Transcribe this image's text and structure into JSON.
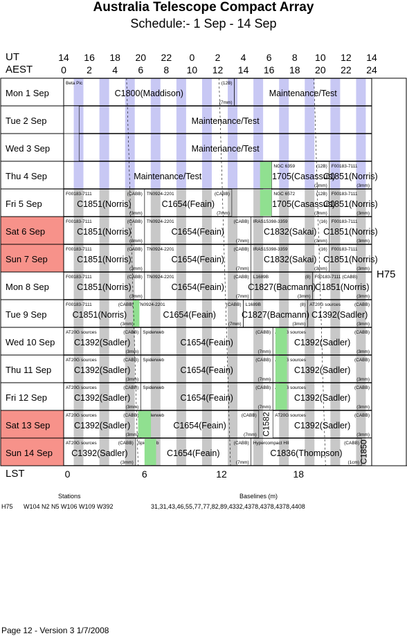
{
  "title": "Australia Telescope Compact Array",
  "subtitle": "Schedule:- 1  Sep - 14 Sep",
  "ut_label": "UT",
  "aest_label": "AEST",
  "lst_label": "LST",
  "ut_hours": [
    "14",
    "16",
    "18",
    "20",
    "22",
    "0",
    "2",
    "4",
    "6",
    "8",
    "10",
    "12",
    "14"
  ],
  "aest_hours": [
    "0",
    "2",
    "4",
    "6",
    "8",
    "10",
    "12",
    "14",
    "16",
    "18",
    "20",
    "22",
    "24"
  ],
  "lst_ticks": [
    "0",
    "6",
    "12",
    "18"
  ],
  "array_config": "H75",
  "days": [
    {
      "label": "Mon  1 Sep",
      "weekend": false
    },
    {
      "label": "Tue  2 Sep",
      "weekend": false
    },
    {
      "label": "Wed  3 Sep",
      "weekend": false
    },
    {
      "label": "Thu  4 Sep",
      "weekend": false
    },
    {
      "label": "Fri  5 Sep",
      "weekend": false
    },
    {
      "label": "Sat  6 Sep",
      "weekend": true
    },
    {
      "label": "Sun  7 Sep",
      "weekend": true
    },
    {
      "label": "Mon  8 Sep",
      "weekend": false
    },
    {
      "label": "Tue  9 Sep",
      "weekend": false
    },
    {
      "label": "Wed 10 Sep",
      "weekend": false
    },
    {
      "label": "Thu  11 Sep",
      "weekend": false
    },
    {
      "label": "Fri  12 Sep",
      "weekend": false
    },
    {
      "label": "Sat  13 Sep",
      "weekend": true
    },
    {
      "label": "Sun  14 Sep",
      "weekend": true
    }
  ],
  "blocks": [
    {
      "row": 0,
      "start": 0,
      "end": 13.3,
      "code": "C1800(Maddison)",
      "src": "Beta Pic",
      "rx": "(12B)",
      "band": "(7mm)"
    },
    {
      "row": 0,
      "start": 13.3,
      "end": 24,
      "code": "Maintenance/Test"
    },
    {
      "row": 1,
      "start": 1.2,
      "end": 24,
      "code": "Maintenance/Test",
      "full": true
    },
    {
      "row": 2,
      "start": 1.2,
      "end": 24,
      "code": "Maintenance/Test",
      "full": true
    },
    {
      "row": 3,
      "start": 0,
      "end": 16.2,
      "code": "Maintenance/Test"
    },
    {
      "row": 3,
      "start": 16.2,
      "end": 20.7,
      "code": "C1705(Casassus)",
      "src": "NGC 6359",
      "rx": "(12B)",
      "band": "(3mm)"
    },
    {
      "row": 3,
      "start": 20.7,
      "end": 24,
      "code": "C1851(Norris)",
      "src": "F00183-7111",
      "band": "(3mm)"
    },
    {
      "row": 4,
      "start": 0,
      "end": 6.3,
      "code": "C1851(Norris)",
      "src": "F00183-7111",
      "rx": "(CABB)",
      "band": "(3mm)"
    },
    {
      "row": 4,
      "start": 6.3,
      "end": 13.1,
      "code": "C1654(Feain)",
      "src": "TN0924-2201",
      "rx": "(CABB)",
      "band": "(7mm)"
    },
    {
      "row": 4,
      "start": 13.1,
      "end": 16.2,
      "code": "",
      "gap": true
    },
    {
      "row": 4,
      "start": 16.2,
      "end": 20.7,
      "code": "C1705(Casassus)",
      "src": "NGC 6572",
      "rx": "(12B)",
      "band": "(3mm)"
    },
    {
      "row": 4,
      "start": 20.7,
      "end": 24,
      "code": "C1851(Norris)",
      "src": "F00183-7111",
      "band": "(3mm)"
    },
    {
      "row": 5,
      "start": 0,
      "end": 6.3,
      "code": "C1851(Norris)",
      "src": "F00183-7111",
      "rx": "(CABB)",
      "band": "(3mm)"
    },
    {
      "row": 5,
      "start": 6.3,
      "end": 14.6,
      "code": "C1654(Feain)",
      "src": "TN0924-2201",
      "rx": "(CABB)",
      "band": "(7mm)"
    },
    {
      "row": 5,
      "start": 14.6,
      "end": 20.7,
      "code": "C1832(Sakai)",
      "src": "IRAS15398-3359",
      "rx": "(16)",
      "band": "(3mm)"
    },
    {
      "row": 5,
      "start": 20.7,
      "end": 24,
      "code": "C1851(Norris)",
      "src": "F00183-7111",
      "band": "(3mm)"
    },
    {
      "row": 6,
      "start": 0,
      "end": 6.3,
      "code": "C1851(Norris)",
      "src": "F00183-7111",
      "rx": "(CABB)",
      "band": "(3mm)"
    },
    {
      "row": 6,
      "start": 6.3,
      "end": 14.6,
      "code": "C1654(Feain)",
      "src": "TN0924-2201",
      "rx": "(CABB)",
      "band": "(7mm)"
    },
    {
      "row": 6,
      "start": 14.6,
      "end": 20.7,
      "code": "C1832(Sakai)",
      "src": "IRAS15398-3359",
      "rx": "(16)",
      "band": "(3mm)"
    },
    {
      "row": 6,
      "start": 20.7,
      "end": 24,
      "code": "C1851(Norris)",
      "src": "F00183-7111",
      "band": "(3mm)"
    },
    {
      "row": 7,
      "start": 0,
      "end": 6.3,
      "code": "C1851(Norris)",
      "src": "F00183-7111",
      "rx": "(CABB)",
      "band": "(3mm)"
    },
    {
      "row": 7,
      "start": 6.3,
      "end": 14.6,
      "code": "C1654(Feain)",
      "src": "TN0924-2201",
      "rx": "(CABB)",
      "band": "(7mm)"
    },
    {
      "row": 7,
      "start": 14.6,
      "end": 19.4,
      "code": "C1827(Bacmann)",
      "src": "L1689B",
      "rx": "(8)",
      "band": "(3mm)"
    },
    {
      "row": 7,
      "start": 19.4,
      "end": 24,
      "code": "C1851(Norris)",
      "src": "F00183-7111 (CABB)",
      "band": "(3mm)"
    },
    {
      "row": 8,
      "start": 0,
      "end": 5.6,
      "code": "C1851(Norris)",
      "src": "F00183-7111",
      "rx": "(CABB)",
      "band": "(3mm)"
    },
    {
      "row": 8,
      "start": 5.6,
      "end": 14.0,
      "code": "C1654(Feain)",
      "src": "TN0924-2201",
      "rx": "(CABB)",
      "band": "(7mm)"
    },
    {
      "row": 8,
      "start": 14.0,
      "end": 19.0,
      "code": "C1827(Bacmann)",
      "src": "L1689B",
      "rx": "(8)",
      "band": "(3mm)"
    },
    {
      "row": 8,
      "start": 19.0,
      "end": 24,
      "code": "C1392(Sadler)",
      "src": "AT20G sources",
      "rx": "(CABB)",
      "band": "(3mm)"
    },
    {
      "row": 9,
      "start": 0,
      "end": 6.0,
      "code": "C1392(Sadler)",
      "src": "AT20G sources",
      "rx": "(CABB)",
      "band": "(3mm)"
    },
    {
      "row": 9,
      "start": 6.0,
      "end": 16.3,
      "code": "C1654(Feain)",
      "src": "Spiderweb",
      "rx": "(CABB)",
      "band": "(7mm)"
    },
    {
      "row": 9,
      "start": 16.3,
      "end": 24,
      "code": "C1392(Sadler)",
      "src": "AT20G sources",
      "rx": "(CABB)",
      "band": "(3mm)"
    },
    {
      "row": 10,
      "start": 0,
      "end": 6.0,
      "code": "C1392(Sadler)",
      "src": "AT20G sources",
      "rx": "(CABB)",
      "band": "(3mm)"
    },
    {
      "row": 10,
      "start": 6.0,
      "end": 16.3,
      "code": "C1654(Feain)",
      "src": "Spiderweb",
      "rx": "(CABB)",
      "band": "(7mm)"
    },
    {
      "row": 10,
      "start": 16.3,
      "end": 24,
      "code": "C1392(Sadler)",
      "src": "AT20G sources",
      "rx": "(CABB)",
      "band": "(3mm)"
    },
    {
      "row": 11,
      "start": 0,
      "end": 6.0,
      "code": "C1392(Sadler)",
      "src": "AT20G sources",
      "rx": "(CABB)",
      "band": "(3mm)"
    },
    {
      "row": 11,
      "start": 6.0,
      "end": 16.3,
      "code": "C1654(Feain)",
      "src": "Spiderweb",
      "rx": "(CABB)",
      "band": "(7mm)"
    },
    {
      "row": 11,
      "start": 16.3,
      "end": 24,
      "code": "C1392(Sadler)",
      "src": "AT20G sources",
      "rx": "(CABB)",
      "band": "(3mm)"
    },
    {
      "row": 12,
      "start": 0,
      "end": 6.0,
      "code": "C1392(Sadler)",
      "src": "AT20G sources",
      "rx": "(CABB)",
      "band": "(3mm)"
    },
    {
      "row": 12,
      "start": 6.0,
      "end": 15.2,
      "code": "C1654(Feain)",
      "src": "Spiderweb",
      "rx": "(CABB)",
      "band": "(7mm)"
    },
    {
      "row": 12,
      "start": 16.3,
      "end": 24,
      "code": "C1392(Sadler)",
      "src": "AT20G sources",
      "rx": "(CABB)",
      "band": "(3mm)"
    },
    {
      "row": 13,
      "start": 0,
      "end": 5.6,
      "code": "C1392(Sadler)",
      "src": "AT20G sources",
      "rx": "(CABB)",
      "band": "(3mm)"
    },
    {
      "row": 13,
      "start": 5.6,
      "end": 14.6,
      "code": "C1654(Feain)",
      "src": "Spiderweb",
      "rx": "(CABB)",
      "band": "(7mm)"
    },
    {
      "row": 13,
      "start": 14.6,
      "end": 23.2,
      "code": "C1836(Thompson)",
      "src": "Hypercompact HII",
      "rx": "(CABB)",
      "band": "(1cm)"
    }
  ],
  "vertical_labels": [
    {
      "text": "C1582",
      "row": 12
    },
    {
      "text": "C1850",
      "row": 13
    }
  ],
  "stations_label": "Stations",
  "baselines_label": "Baselines (m)",
  "stations_value": "W104 N2 N5 W106 W109 W392",
  "baselines_value": "31,31,43,46,55,77,77,82,89,4332,4378,4378,4378,4408",
  "footer": "Page 12 - Version 3  1/7/2008"
}
